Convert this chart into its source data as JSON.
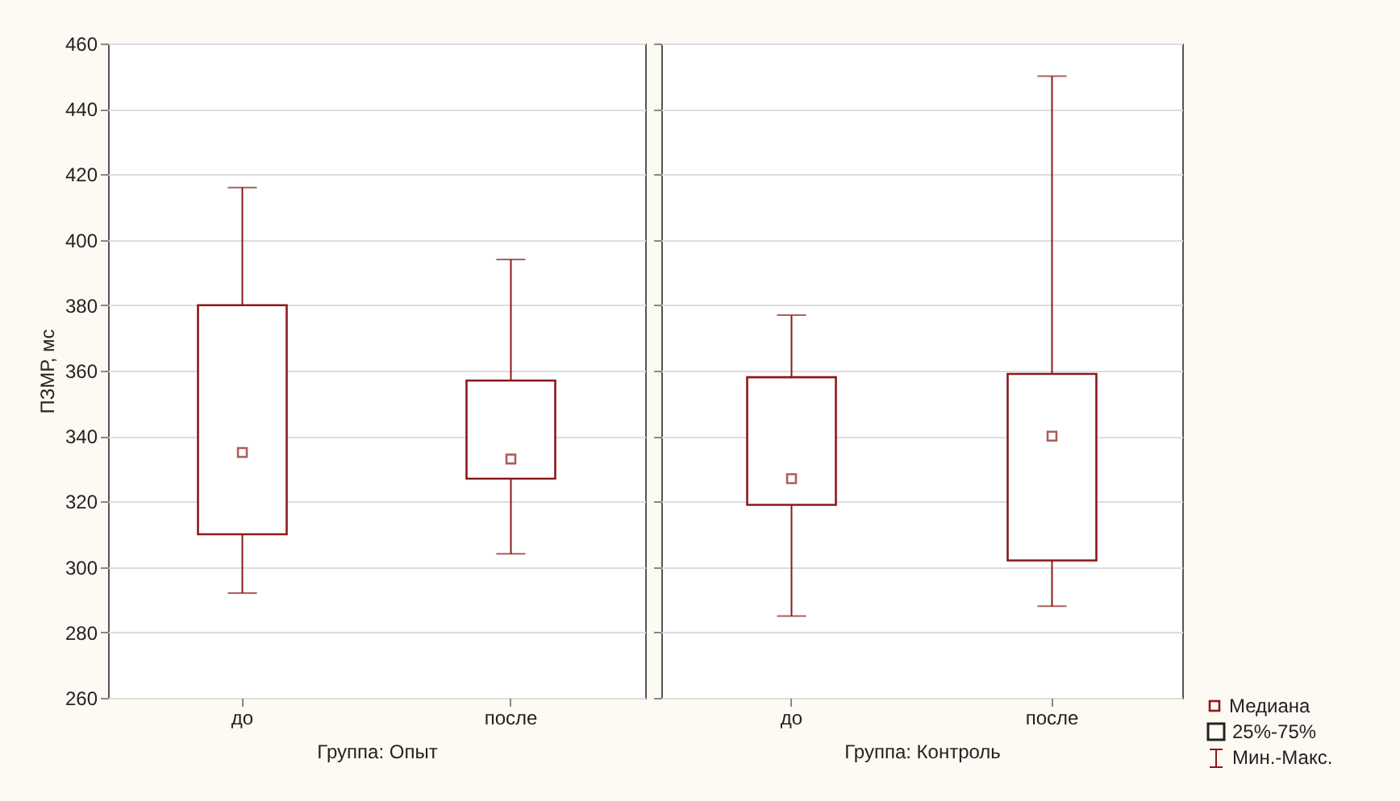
{
  "chart_data": [
    {
      "type": "box",
      "xlabel": "Группа: Опыт",
      "ylabel": "ПЗМР, мс",
      "categories": [
        "до",
        "после"
      ],
      "color": "#8b1a1a",
      "marker": "square",
      "grid": "y",
      "ylim": [
        260,
        460
      ],
      "yticks": [
        260,
        280,
        300,
        320,
        340,
        360,
        380,
        400,
        420,
        440,
        460
      ],
      "boxes": [
        {
          "low": 292,
          "q1": 310,
          "median": 335,
          "q3": 380,
          "high": 416
        },
        {
          "low": 304,
          "q1": 327,
          "median": 333,
          "q3": 357,
          "high": 394
        }
      ]
    },
    {
      "type": "box",
      "xlabel": "Группа: Контроль",
      "categories": [
        "до",
        "после"
      ],
      "color": "#8b1a1a",
      "marker": "square",
      "grid": "y",
      "tick_labels": "x",
      "ylim": [
        260,
        460
      ],
      "yticks": [
        260,
        280,
        300,
        320,
        340,
        360,
        380,
        400,
        420,
        440,
        460
      ],
      "boxes": [
        {
          "low": 285,
          "q1": 319,
          "median": 327,
          "q3": 358,
          "high": 377
        },
        {
          "low": 288,
          "q1": 302,
          "median": 340,
          "q3": 359,
          "high": 450
        }
      ],
      "annotations": [
        "Медиана",
        "25%-75%",
        "Мин.-Макс."
      ]
    }
  ]
}
